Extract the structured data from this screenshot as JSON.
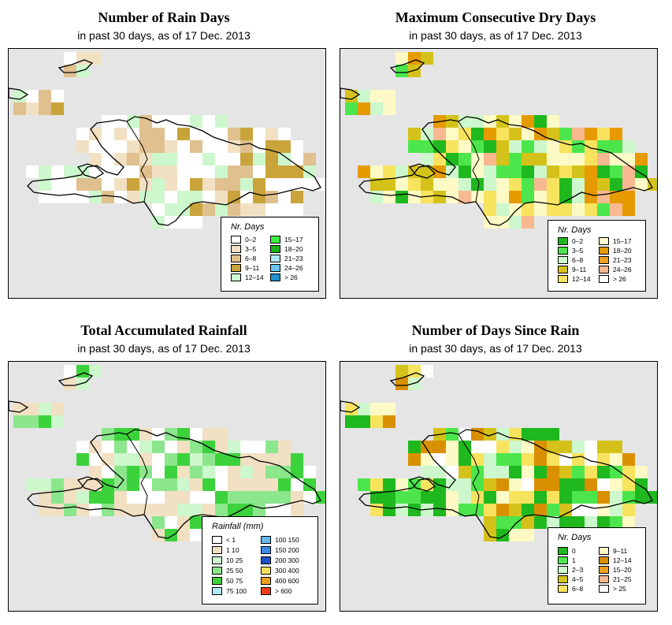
{
  "subtitle": "in past 30 days, as of  17 Dec. 2013",
  "panels": [
    {
      "title": "Number of Rain Days",
      "legend_title": "Nr. Days",
      "legend": [
        {
          "label": "0–2",
          "color": "#ffffff"
        },
        {
          "label": "3–5",
          "color": "#f2e0c3"
        },
        {
          "label": "6–8",
          "color": "#e0c08e"
        },
        {
          "label": "9–11",
          "color": "#c9a43b"
        },
        {
          "label": "12–14",
          "color": "#cdf7cd"
        },
        {
          "label": "15–17",
          "color": "#3cf03c"
        },
        {
          "label": "18–20",
          "color": "#19b419"
        },
        {
          "label": "21–23",
          "color": "#b2e8f5"
        },
        {
          "label": "24–26",
          "color": "#6bc4f0"
        },
        {
          "label": "> 26",
          "color": "#1e90d0"
        }
      ]
    },
    {
      "title": "Maximum Consecutive Dry Days",
      "legend_title": "Nr. Days",
      "legend": [
        {
          "label": "0–2",
          "color": "#1fb81f"
        },
        {
          "label": "3–5",
          "color": "#4ce64c"
        },
        {
          "label": "6–8",
          "color": "#cdf7cd"
        },
        {
          "label": "9–11",
          "color": "#d4c21a"
        },
        {
          "label": "12–14",
          "color": "#f7e35e"
        },
        {
          "label": "15–17",
          "color": "#fdfac6"
        },
        {
          "label": "18–20",
          "color": "#e59a00"
        },
        {
          "label": "21–23",
          "color": "#f0a020"
        },
        {
          "label": "24–26",
          "color": "#f8b890"
        },
        {
          "label": "> 26",
          "color": "#ffffff"
        }
      ]
    },
    {
      "title": "Total Accumulated Rainfall",
      "legend_title": "Rainfall (mm)",
      "legend": [
        {
          "label": "< 1",
          "color": "#ffffff"
        },
        {
          "label": "1    10",
          "color": "#f2e0c3"
        },
        {
          "label": "10    25",
          "color": "#cdf7cd"
        },
        {
          "label": "25    50",
          "color": "#8ce68c"
        },
        {
          "label": "50    75",
          "color": "#3cd23c"
        },
        {
          "label": "75   100",
          "color": "#b2e8f5"
        },
        {
          "label": "100   150",
          "color": "#6bb8f0"
        },
        {
          "label": "150   200",
          "color": "#3c8ce6"
        },
        {
          "label": "200   300",
          "color": "#1e50c8"
        },
        {
          "label": "300   400",
          "color": "#f7e35e"
        },
        {
          "label": "400   600",
          "color": "#f0a020"
        },
        {
          "label": "> 600",
          "color": "#f03c14"
        }
      ]
    },
    {
      "title": "Number of Days Since Rain",
      "legend_title": "Nr. Days",
      "legend": [
        {
          "label": "0",
          "color": "#1fb81f"
        },
        {
          "label": "1",
          "color": "#4ce64c"
        },
        {
          "label": "2–3",
          "color": "#cdf7cd"
        },
        {
          "label": "4–5",
          "color": "#d4c21a"
        },
        {
          "label": "6–8",
          "color": "#f7e35e"
        },
        {
          "label": "9–11",
          "color": "#fdfac6"
        },
        {
          "label": "12–14",
          "color": "#d99000"
        },
        {
          "label": "15–20",
          "color": "#f0a020"
        },
        {
          "label": "21–25",
          "color": "#f8b890"
        },
        {
          "label": "> 25",
          "color": "#ffffff"
        }
      ]
    }
  ],
  "colors": {
    "background": "#e5e5e5",
    "coastline": "#000000"
  }
}
